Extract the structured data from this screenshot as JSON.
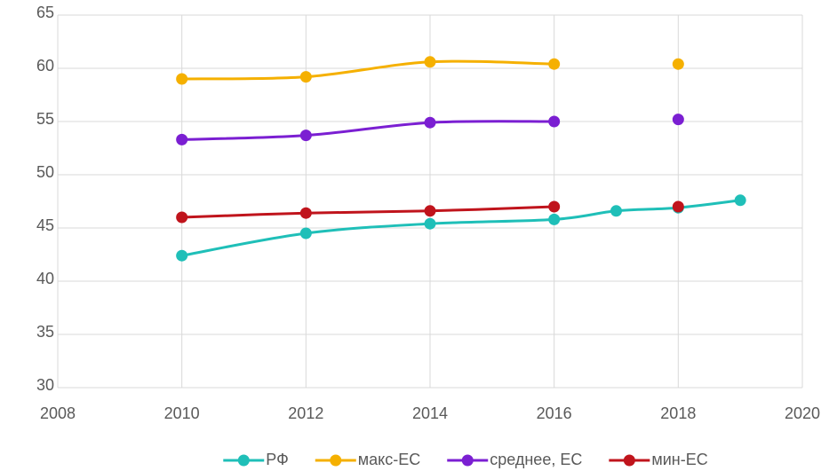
{
  "chart_data": {
    "type": "line",
    "x": [
      2010,
      2012,
      2014,
      2016,
      2017,
      2018,
      2019
    ],
    "series": [
      {
        "name": "РФ",
        "color": "#1fbfb8",
        "values": [
          42.4,
          44.5,
          45.4,
          45.8,
          46.6,
          46.9,
          47.6
        ]
      },
      {
        "name": "макс-ЕС",
        "color": "#f5b000",
        "values": [
          59.0,
          59.2,
          60.6,
          60.4,
          null,
          60.4,
          null
        ]
      },
      {
        "name": "среднее, ЕС",
        "color": "#7b1fd2",
        "values": [
          53.3,
          53.7,
          54.9,
          55.0,
          null,
          55.2,
          null
        ]
      },
      {
        "name": "мин-ЕС",
        "color": "#c0141c",
        "values": [
          46.0,
          46.4,
          46.6,
          47.0,
          null,
          47.0,
          null
        ]
      }
    ],
    "xlim": [
      2008,
      2020
    ],
    "xticks": [
      2008,
      2010,
      2012,
      2014,
      2016,
      2018,
      2020
    ],
    "ylim": [
      30,
      65
    ],
    "yticks": [
      30,
      35,
      40,
      45,
      50,
      55,
      60,
      65
    ],
    "grid": true,
    "legend": "bottom"
  }
}
